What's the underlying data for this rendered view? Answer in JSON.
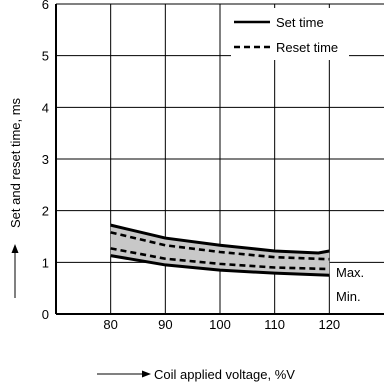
{
  "chart_data": {
    "type": "line",
    "title": "",
    "xlabel": "Coil applied voltage, %V",
    "ylabel": "Set and reset time, ms",
    "xlim": [
      70,
      130
    ],
    "ylim": [
      0,
      6
    ],
    "x_ticks": [
      80,
      90,
      100,
      110,
      120
    ],
    "y_ticks": [
      0,
      1,
      2,
      3,
      4,
      5,
      6
    ],
    "grid": true,
    "legend_position": "top-right",
    "legend": [
      {
        "label": "Set time",
        "style": "solid"
      },
      {
        "label": "Reset time",
        "style": "dashed"
      }
    ],
    "annotations": [
      "Max.",
      "Min."
    ],
    "shaded_band": {
      "between": [
        "Set time Max.",
        "Set time Min."
      ],
      "color": "#c8c8c8"
    },
    "series": [
      {
        "name": "Set time",
        "bound": "Max.",
        "style": "solid",
        "x": [
          80,
          90,
          100,
          110,
          118,
          120
        ],
        "y": [
          1.72,
          1.47,
          1.33,
          1.22,
          1.18,
          1.22
        ]
      },
      {
        "name": "Set time",
        "bound": "Min.",
        "style": "solid",
        "x": [
          80,
          90,
          100,
          110,
          120
        ],
        "y": [
          1.13,
          0.95,
          0.85,
          0.79,
          0.75
        ]
      },
      {
        "name": "Reset time",
        "bound": "Max.",
        "style": "dashed",
        "x": [
          80,
          90,
          100,
          110,
          120
        ],
        "y": [
          1.58,
          1.33,
          1.2,
          1.1,
          1.06
        ]
      },
      {
        "name": "Reset time",
        "bound": "Min.",
        "style": "dashed",
        "x": [
          80,
          90,
          100,
          110,
          120
        ],
        "y": [
          1.27,
          1.07,
          0.97,
          0.9,
          0.87
        ]
      }
    ]
  }
}
